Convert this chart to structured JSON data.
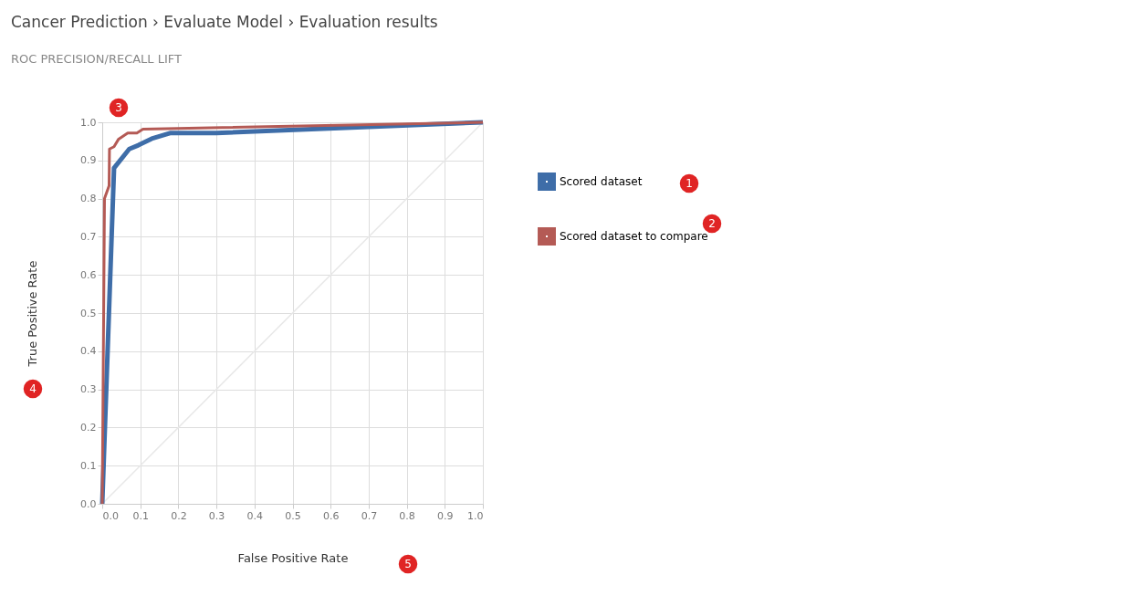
{
  "chart_data": {
    "type": "line",
    "title": "Cancer Prediction › Evaluate Model › Evaluation results",
    "subtitle": "ROC   PRECISION/RECALL   LIFT",
    "xlabel": "False Positive Rate",
    "ylabel": "True Positive Rate",
    "xlim": [
      0,
      1
    ],
    "ylim": [
      0,
      1
    ],
    "xticks": [
      {
        "value": 0,
        "label": "0.0"
      },
      0.1,
      0.2,
      0.3,
      0.4,
      0.5,
      0.6,
      0.7,
      0.8,
      0.9,
      {
        "value": 1,
        "label": "1.0"
      }
    ],
    "yticks": [
      {
        "value": 0,
        "label": "0.0"
      },
      0.1,
      0.2,
      0.3,
      0.4,
      0.5,
      0.6,
      0.7,
      0.8,
      0.9,
      {
        "value": 1,
        "label": "1.0"
      }
    ],
    "grid": true,
    "legend": "right",
    "series": [
      {
        "name": "Scored dataset",
        "color": "#3e6da8",
        "x": [
          0,
          0.031,
          0.071,
          0.095,
          0.13,
          0.18,
          0.3,
          1
        ],
        "values": [
          0,
          0.88,
          0.93,
          0.94,
          0.957,
          0.972,
          0.972,
          1
        ]
      },
      {
        "name": "Scored dataset to compare",
        "color": "#b45a55",
        "x": [
          0,
          0.006,
          0.018,
          0.019,
          0.031,
          0.043,
          0.067,
          0.091,
          0.107,
          1
        ],
        "values": [
          0,
          0.8,
          0.834,
          0.93,
          0.936,
          0.956,
          0.972,
          0.972,
          0.982,
          1
        ]
      },
      {
        "color": "#e8e8e8",
        "x": [
          0,
          1
        ],
        "values": [
          0,
          1
        ]
      }
    ],
    "annotations": [
      "1",
      "2",
      "3",
      "4",
      "5"
    ]
  }
}
